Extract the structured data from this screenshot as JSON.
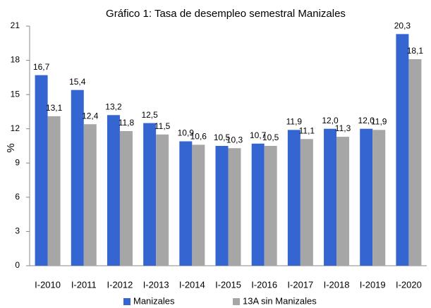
{
  "chart_data": {
    "type": "bar",
    "title": "Gráfico 1: Tasa de desempleo semestral Manizales",
    "y_label": "%",
    "categories": [
      "I-2010",
      "I-2011",
      "I-2012",
      "I-2013",
      "I-2014",
      "I-2015",
      "I-2016",
      "I-2017",
      "I-2018",
      "I-2019",
      "I-2020"
    ],
    "series": [
      {
        "name": "Manizales",
        "color": "#3565d1",
        "values": [
          16.7,
          15.4,
          13.2,
          12.5,
          10.9,
          10.5,
          10.7,
          11.9,
          12.0,
          12.0,
          20.3
        ],
        "value_labels": [
          "16,7",
          "15,4",
          "13,2",
          "12,5",
          "10,9",
          "10,5",
          "10,7",
          "11,9",
          "12,0",
          "12,0",
          "20,3"
        ]
      },
      {
        "name": "13A sin Manizales",
        "color": "#a6a6a6",
        "values": [
          13.1,
          12.4,
          11.8,
          11.5,
          10.6,
          10.3,
          10.5,
          11.1,
          11.3,
          11.9,
          18.1
        ],
        "value_labels": [
          "13,1",
          "12,4",
          "11,8",
          "11,5",
          "10,6",
          "10,3",
          "10,5",
          "11,1",
          "11,3",
          "11,9",
          "18,1"
        ]
      }
    ],
    "ylim": [
      0,
      21
    ],
    "yticks": [
      0,
      3,
      6,
      9,
      12,
      15,
      18,
      21
    ],
    "grid": false,
    "legend": "bottom"
  }
}
